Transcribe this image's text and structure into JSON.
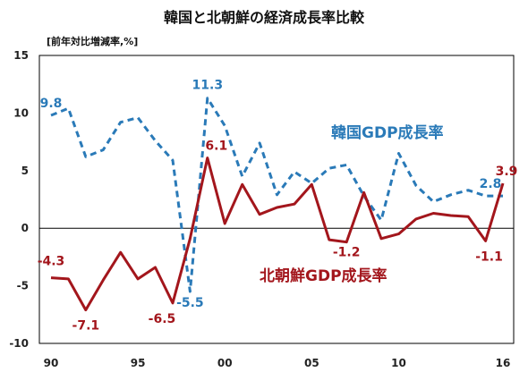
{
  "chart_data": {
    "type": "line",
    "title": "韓国と北朝鮮の経済成長率比較",
    "ylabel": "[前年対比増減率,%]",
    "xlabel": "",
    "ylim": [
      -10,
      15
    ],
    "yticks": [
      15,
      10,
      5,
      0,
      -5,
      -10
    ],
    "xlim": [
      1990,
      2016
    ],
    "xticks": [
      {
        "year": 1990,
        "label": "90"
      },
      {
        "year": 1995,
        "label": "95"
      },
      {
        "year": 2000,
        "label": "00"
      },
      {
        "year": 2005,
        "label": "05"
      },
      {
        "year": 2010,
        "label": "10"
      },
      {
        "year": 2016,
        "label": "16"
      }
    ],
    "x": [
      1990,
      1991,
      1992,
      1993,
      1994,
      1995,
      1996,
      1997,
      1998,
      1999,
      2000,
      2001,
      2002,
      2003,
      2004,
      2005,
      2006,
      2007,
      2008,
      2009,
      2010,
      2011,
      2012,
      2013,
      2014,
      2015,
      2016
    ],
    "grid": "none",
    "series": [
      {
        "name": "韓国GDP成長率",
        "color": "#2a7ab8",
        "dashed": true,
        "values": [
          9.8,
          10.4,
          6.2,
          6.8,
          9.2,
          9.6,
          7.6,
          5.9,
          -5.5,
          11.3,
          8.9,
          4.5,
          7.4,
          2.9,
          4.9,
          3.9,
          5.2,
          5.5,
          2.8,
          0.7,
          6.5,
          3.7,
          2.3,
          2.9,
          3.3,
          2.8,
          2.8
        ],
        "data_labels": [
          {
            "index": 0,
            "text": "9.8"
          },
          {
            "index": 8,
            "text": "-5.5"
          },
          {
            "index": 9,
            "text": "11.3"
          },
          {
            "index": 26,
            "text": "2.8"
          }
        ]
      },
      {
        "name": "北朝鮮GDP成長率",
        "color": "#a3161c",
        "dashed": false,
        "values": [
          -4.3,
          -4.4,
          -7.1,
          -4.5,
          -2.1,
          -4.4,
          -3.4,
          -6.5,
          -0.9,
          6.1,
          0.4,
          3.8,
          1.2,
          1.8,
          2.1,
          3.8,
          -1.0,
          -1.2,
          3.1,
          -0.9,
          -0.5,
          0.8,
          1.3,
          1.1,
          1.0,
          -1.1,
          3.9
        ],
        "data_labels": [
          {
            "index": 0,
            "text": "-4.3"
          },
          {
            "index": 2,
            "text": "-7.1"
          },
          {
            "index": 7,
            "text": "-6.5"
          },
          {
            "index": 9,
            "text": "6.1"
          },
          {
            "index": 17,
            "text": "-1.2"
          },
          {
            "index": 25,
            "text": "-1.1"
          },
          {
            "index": 26,
            "text": "3.9"
          }
        ]
      }
    ]
  }
}
